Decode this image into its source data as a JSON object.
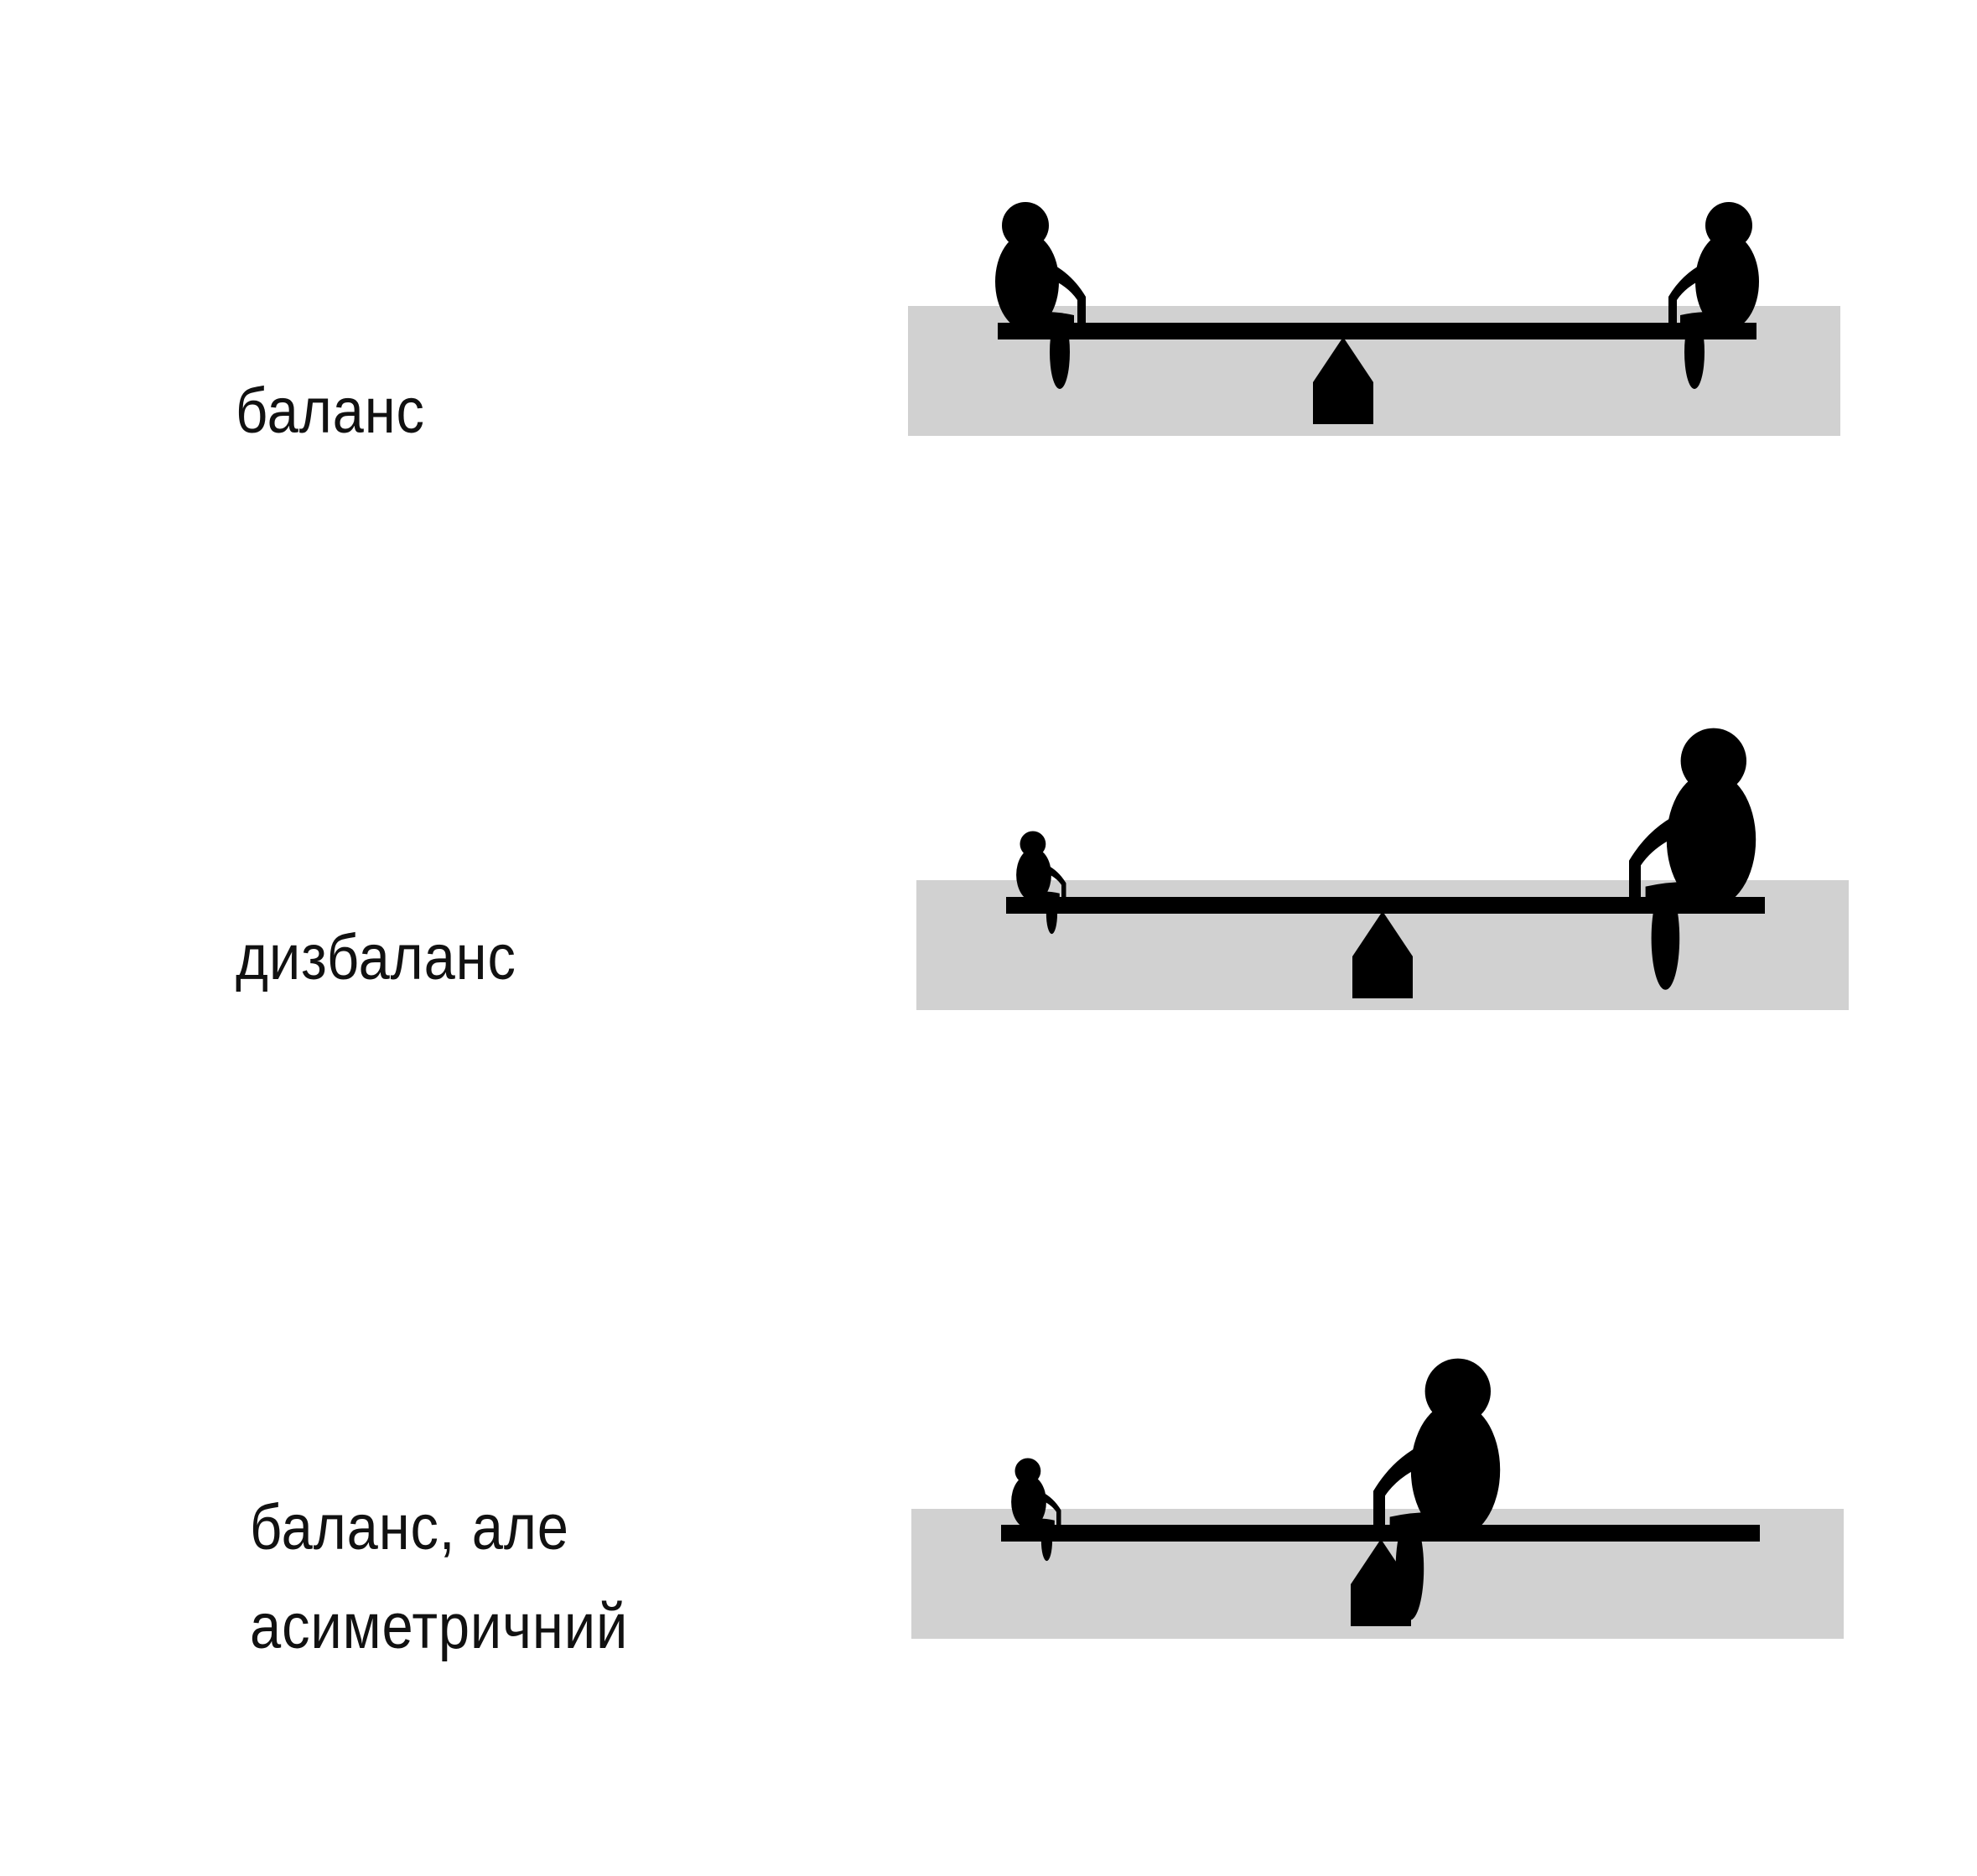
{
  "colors": {
    "background": "#ffffff",
    "panel": "#d1d1d1",
    "ink": "#000000",
    "text": "#111111"
  },
  "rows": [
    {
      "label_lines": [
        "баланс"
      ],
      "state": "balanced",
      "figures": [
        {
          "side": "left",
          "size": "medium",
          "icon": "sitting-person-icon"
        },
        {
          "side": "right",
          "size": "medium",
          "icon": "sitting-person-icon"
        }
      ]
    },
    {
      "label_lines": [
        "дизбаланс"
      ],
      "state": "imbalanced",
      "figures": [
        {
          "side": "left",
          "size": "small",
          "icon": "sitting-person-icon"
        },
        {
          "side": "right",
          "size": "large",
          "icon": "sitting-person-icon"
        }
      ]
    },
    {
      "label_lines": [
        "баланс, але",
        "асиметричний"
      ],
      "state": "balanced-asymmetric",
      "figures": [
        {
          "side": "left",
          "size": "small",
          "icon": "sitting-person-icon"
        },
        {
          "side": "near-fulcrum",
          "size": "large",
          "icon": "sitting-person-icon"
        }
      ]
    }
  ]
}
